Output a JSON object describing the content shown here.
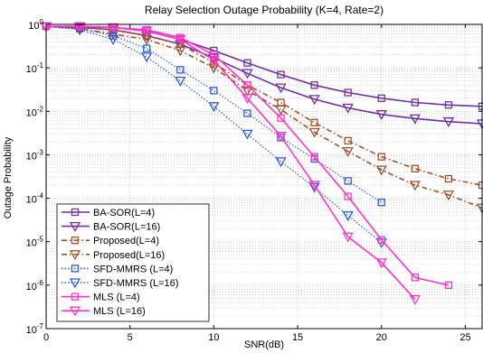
{
  "chart_data": {
    "type": "line",
    "title": "Relay Selection Outage Probability (K=4, Rate=2)",
    "xlabel": "SNR(dB)",
    "ylabel": "Outage Probability",
    "xlim": [
      0,
      26
    ],
    "ylim": [
      1e-07,
      1
    ],
    "yscale": "log",
    "grid": true,
    "legend_position": "bottom-left",
    "x_ticks": [
      "0",
      "5",
      "10",
      "15",
      "20",
      "25"
    ],
    "y_ticks": [
      {
        "base": "10",
        "exp": "0"
      },
      {
        "base": "10",
        "exp": "-1"
      },
      {
        "base": "10",
        "exp": "-2"
      },
      {
        "base": "10",
        "exp": "-3"
      },
      {
        "base": "10",
        "exp": "-4"
      },
      {
        "base": "10",
        "exp": "-5"
      },
      {
        "base": "10",
        "exp": "-6"
      },
      {
        "base": "10",
        "exp": "-7"
      }
    ],
    "series": [
      {
        "name": "BA-SOR(L=4)",
        "color": "#7030a0",
        "marker": "square",
        "dash": "solid",
        "x": [
          0,
          2,
          4,
          6,
          8,
          10,
          12,
          14,
          16,
          18,
          20,
          22,
          24,
          26
        ],
        "y": [
          0.9,
          0.87,
          0.85,
          0.7,
          0.45,
          0.25,
          0.13,
          0.07,
          0.04,
          0.027,
          0.02,
          0.016,
          0.014,
          0.013
        ]
      },
      {
        "name": "BA-SOR(L=16)",
        "color": "#7030a0",
        "marker": "triangle-down",
        "dash": "solid",
        "x": [
          0,
          2,
          4,
          6,
          8,
          10,
          12,
          14,
          16,
          18,
          20,
          22,
          24,
          26
        ],
        "y": [
          0.9,
          0.85,
          0.75,
          0.55,
          0.35,
          0.17,
          0.075,
          0.035,
          0.019,
          0.012,
          0.0085,
          0.0068,
          0.0058,
          0.0052
        ]
      },
      {
        "name": "Proposed(L=4)",
        "color": "#a0522d",
        "marker": "square",
        "dash": "dashdot",
        "x": [
          0,
          2,
          4,
          6,
          8,
          10,
          12,
          14,
          16,
          18,
          20,
          22,
          24,
          26
        ],
        "y": [
          0.9,
          0.85,
          0.75,
          0.55,
          0.35,
          0.13,
          0.04,
          0.016,
          0.0055,
          0.0021,
          0.0009,
          0.00048,
          0.00028,
          0.0002
        ]
      },
      {
        "name": "Proposed(L=16)",
        "color": "#a0522d",
        "marker": "triangle-down",
        "dash": "dashdot",
        "x": [
          0,
          2,
          4,
          6,
          8,
          10,
          12,
          14,
          16,
          18,
          20,
          22,
          24,
          26
        ],
        "y": [
          0.9,
          0.8,
          0.6,
          0.45,
          0.25,
          0.1,
          0.03,
          0.011,
          0.0033,
          0.0012,
          0.00045,
          0.0002,
          0.00012,
          6e-05
        ]
      },
      {
        "name": "SFD-MMRS (L=4)",
        "color": "#2e5bd8",
        "marker": "square",
        "dash": "dotted",
        "x": [
          0,
          2,
          4,
          6,
          8,
          10,
          12,
          14,
          16,
          18,
          20
        ],
        "y": [
          0.9,
          0.8,
          0.55,
          0.28,
          0.09,
          0.03,
          0.009,
          0.0025,
          0.0008,
          0.00025,
          8e-05
        ]
      },
      {
        "name": "SFD-MMRS (L=16)",
        "color": "#2e5bd8",
        "marker": "triangle-down",
        "dash": "dotted",
        "x": [
          0,
          2,
          4,
          6,
          8,
          10,
          12,
          14,
          16,
          18,
          20
        ],
        "y": [
          0.9,
          0.75,
          0.45,
          0.18,
          0.05,
          0.013,
          0.003,
          0.0007,
          0.00018,
          4e-05,
          9.5e-06
        ]
      },
      {
        "name": "MLS (L=4)",
        "color": "#ff33cc",
        "marker": "square",
        "dash": "solid",
        "x": [
          0,
          2,
          4,
          6,
          8,
          10,
          12,
          14,
          16,
          18,
          20,
          22,
          24
        ],
        "y": [
          0.9,
          0.9,
          0.85,
          0.75,
          0.5,
          0.2,
          0.04,
          0.007,
          0.0009,
          0.00011,
          1.1e-05,
          1.5e-06,
          1e-06
        ]
      },
      {
        "name": "MLS (L=16)",
        "color": "#ff33cc",
        "marker": "triangle-down",
        "dash": "solid",
        "x": [
          0,
          2,
          4,
          6,
          8,
          10,
          12,
          14,
          16,
          18,
          20,
          22
        ],
        "y": [
          0.9,
          0.9,
          0.85,
          0.7,
          0.45,
          0.15,
          0.02,
          0.0027,
          0.0002,
          1.3e-05,
          3.3e-06,
          4.7e-07
        ]
      }
    ]
  }
}
